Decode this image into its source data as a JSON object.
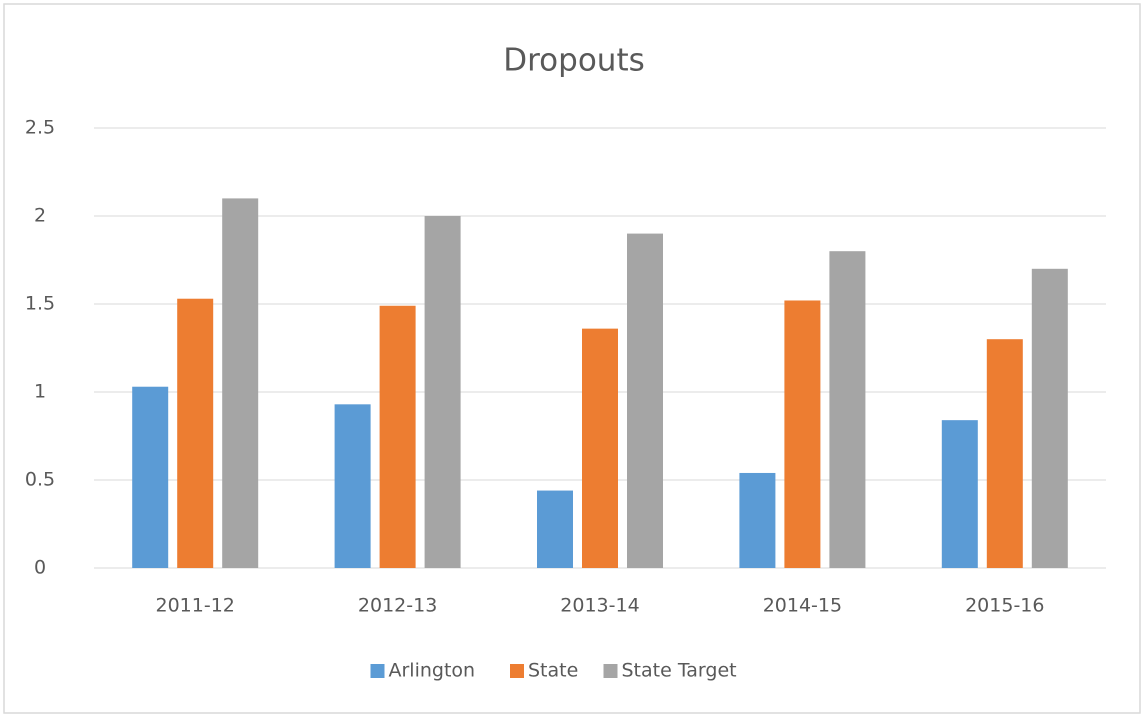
{
  "chart_data": {
    "type": "bar",
    "title": "Dropouts",
    "categories": [
      "2011-12",
      "2012-13",
      "2013-14",
      "2014-15",
      "2015-16"
    ],
    "series": [
      {
        "name": "Arlington",
        "color": "#5b9bd5",
        "values": [
          1.03,
          0.93,
          0.44,
          0.54,
          0.84
        ]
      },
      {
        "name": "State",
        "color": "#ed7d31",
        "values": [
          1.53,
          1.49,
          1.36,
          1.52,
          1.3
        ]
      },
      {
        "name": "State Target",
        "color": "#a5a5a5",
        "values": [
          2.1,
          2.0,
          1.9,
          1.8,
          1.7
        ]
      }
    ],
    "ylim": [
      0,
      2.5
    ],
    "yticks": [
      0,
      0.5,
      1,
      1.5,
      2,
      2.5
    ],
    "grid": true,
    "legend": "bottom"
  }
}
